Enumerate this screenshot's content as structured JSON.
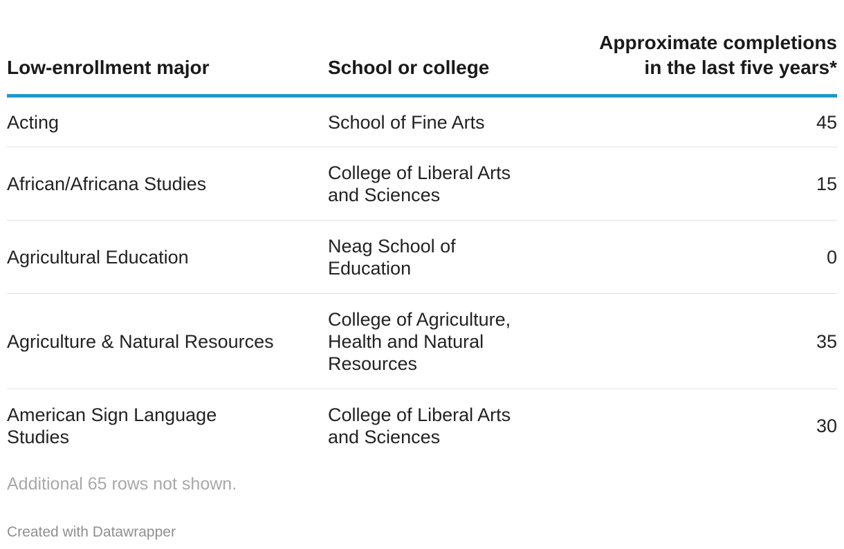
{
  "chart_data": {
    "type": "table",
    "columns": [
      {
        "lines": [
          "Low-enrollment major"
        ]
      },
      {
        "lines": [
          "School or college"
        ]
      },
      {
        "lines": [
          "Approximate completions",
          "in the last five years*"
        ]
      }
    ],
    "rows": [
      {
        "major": [
          "Acting"
        ],
        "school": [
          "School of Fine Arts"
        ],
        "completions": "45"
      },
      {
        "major": [
          "African/Africana Studies"
        ],
        "school": [
          "College of Liberal Arts",
          "and Sciences"
        ],
        "completions": "15"
      },
      {
        "major": [
          "Agricultural Education"
        ],
        "school": [
          "Neag School of",
          "Education"
        ],
        "completions": "0"
      },
      {
        "major": [
          "Agriculture & Natural Resources"
        ],
        "school": [
          "College of Agriculture,",
          "Health and Natural",
          "Resources"
        ],
        "completions": "35"
      },
      {
        "major": [
          "American Sign Language",
          "Studies"
        ],
        "school": [
          "College of Liberal Arts",
          "and Sciences"
        ],
        "completions": "30"
      }
    ]
  },
  "footer": {
    "note": "Additional 65 rows not shown.",
    "credit": "Created with Datawrapper"
  },
  "colors": {
    "header_rule": "#1f98c9",
    "row_rule": "#e2e2e2",
    "note_text": "#a8a8a8"
  }
}
